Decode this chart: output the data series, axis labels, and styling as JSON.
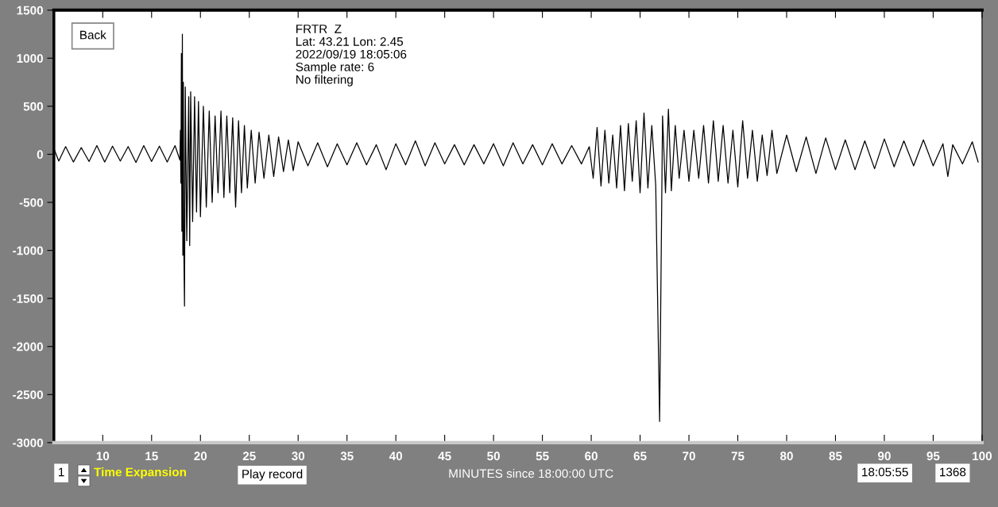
{
  "chart_data": {
    "type": "line",
    "xlabel": "MINUTES since 18:00:00 UTC",
    "annotations": [
      "Back",
      "FRTR  Z",
      "Lat: 43.21 Lon: 2.45",
      "2022/09/19 18:05:06",
      "Sample rate: 6",
      "No filtering",
      "1",
      "Time Expansion",
      "Play record",
      "18:05:55",
      "1368"
    ],
    "xlim": [
      5,
      100
    ],
    "xticks": [
      10,
      15,
      20,
      25,
      30,
      35,
      40,
      45,
      50,
      55,
      60,
      65,
      70,
      75,
      80,
      85,
      90,
      95,
      100
    ],
    "ylim": [
      -3000,
      1500
    ],
    "yticks": [
      -3000,
      -2500,
      -2000,
      -1500,
      -1000,
      -500,
      0,
      500,
      1000,
      1500
    ],
    "grid": false,
    "marker": "none",
    "line_style": "solid",
    "series": [
      {
        "color": "#000000",
        "x": [
          5.0,
          5.5,
          6.2,
          7.0,
          7.8,
          8.6,
          9.4,
          10.2,
          11.0,
          11.8,
          12.6,
          13.4,
          14.2,
          15.0,
          15.8,
          16.6,
          17.4,
          17.9,
          17.95,
          18.0,
          18.05,
          18.1,
          18.15,
          18.2,
          18.25,
          18.3,
          18.37,
          18.45,
          18.6,
          18.8,
          18.9,
          19.0,
          19.2,
          19.4,
          19.6,
          19.8,
          20.0,
          20.3,
          20.6,
          20.9,
          21.2,
          21.5,
          21.8,
          22.1,
          22.4,
          22.7,
          23.0,
          23.3,
          23.6,
          23.9,
          24.2,
          24.5,
          24.8,
          25.2,
          25.6,
          26.0,
          26.5,
          27.0,
          27.5,
          28.0,
          28.5,
          29.0,
          29.5,
          30,
          31,
          32,
          33,
          34,
          35,
          36,
          37,
          38,
          39,
          40,
          41,
          42,
          43,
          44,
          45,
          46,
          47,
          48,
          49,
          50,
          51,
          52,
          53,
          54,
          55,
          56,
          57,
          58,
          59,
          59.8,
          60.2,
          60.6,
          61.0,
          61.4,
          61.8,
          62.2,
          62.6,
          63.0,
          63.4,
          63.8,
          64.2,
          64.6,
          65.0,
          65.4,
          65.8,
          66.2,
          66.6,
          67.0,
          67.3,
          67.6,
          67.9,
          68.2,
          68.6,
          69.0,
          69.5,
          70.0,
          70.5,
          71.0,
          71.5,
          72.0,
          72.5,
          73.0,
          73.5,
          74.0,
          74.5,
          75.0,
          75.5,
          76.0,
          76.5,
          77.0,
          77.5,
          78.0,
          78.5,
          79.0,
          80,
          81,
          82,
          83,
          84,
          85,
          86,
          87,
          88,
          89,
          90,
          91,
          92,
          93,
          94,
          95,
          96,
          96.5,
          97,
          98,
          99,
          99.6
        ],
        "values": [
          60,
          -70,
          80,
          -80,
          70,
          -75,
          90,
          -80,
          85,
          -70,
          80,
          -85,
          90,
          -75,
          85,
          -80,
          90,
          -60,
          250,
          -300,
          1050,
          -800,
          1250,
          -1050,
          750,
          -1000,
          -1580,
          700,
          -900,
          600,
          -950,
          650,
          -700,
          600,
          -600,
          550,
          -650,
          500,
          -550,
          450,
          -500,
          400,
          -400,
          450,
          -450,
          400,
          -400,
          380,
          -550,
          350,
          -400,
          300,
          -350,
          250,
          -300,
          230,
          -250,
          200,
          -230,
          180,
          -180,
          150,
          -170,
          130,
          -120,
          120,
          -130,
          110,
          -110,
          120,
          -110,
          100,
          -160,
          110,
          -110,
          140,
          -120,
          120,
          -100,
          100,
          -110,
          100,
          -100,
          110,
          -120,
          120,
          -100,
          100,
          -110,
          110,
          -100,
          90,
          -100,
          80,
          -250,
          280,
          -330,
          250,
          -300,
          200,
          -350,
          300,
          -380,
          320,
          -280,
          350,
          -400,
          430,
          -350,
          300,
          -320,
          -2780,
          400,
          -400,
          470,
          -380,
          300,
          -250,
          250,
          -280,
          250,
          -250,
          300,
          -300,
          350,
          -280,
          300,
          -300,
          250,
          -340,
          350,
          -250,
          250,
          -280,
          200,
          -220,
          250,
          -200,
          200,
          -180,
          180,
          -200,
          170,
          -160,
          150,
          -160,
          140,
          -150,
          160,
          -130,
          140,
          -120,
          150,
          -120,
          110,
          -230,
          100,
          -100,
          130,
          -80
        ]
      }
    ]
  }
}
